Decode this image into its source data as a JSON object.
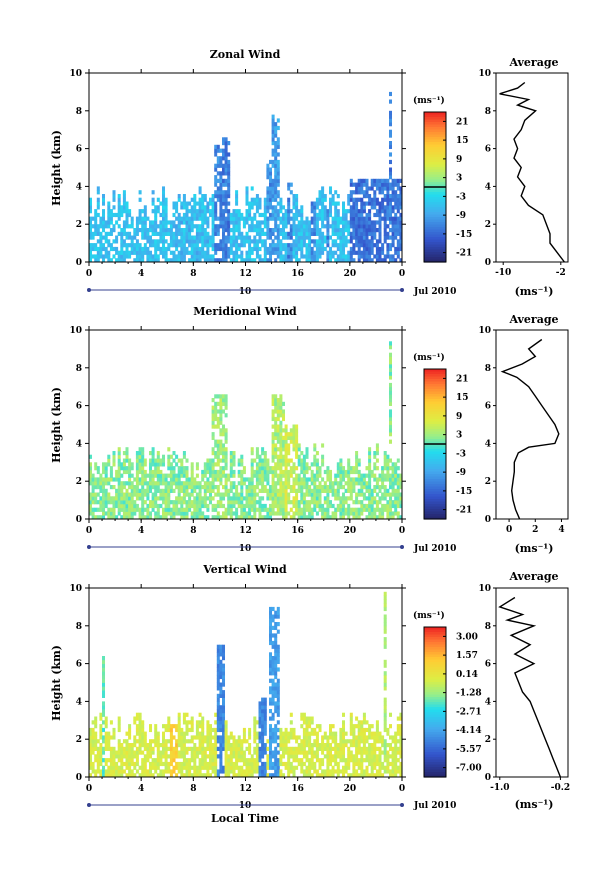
{
  "figure": {
    "x_axis_label": "Local Time",
    "date_labels": [
      "Jul 2010",
      "Jul 2010",
      "Jul 2010"
    ],
    "day_marks": [
      "10",
      "10",
      "10"
    ]
  },
  "chart_data": [
    {
      "type": "heatmap",
      "title": "Zonal Wind",
      "ylabel": "Height (km)",
      "xlabel": "",
      "xlim": [
        0,
        24
      ],
      "ylim": [
        0,
        10
      ],
      "x_ticks": [
        "0",
        "4",
        "8",
        "12",
        "16",
        "20",
        "0"
      ],
      "y_ticks": [
        "0",
        "2",
        "4",
        "6",
        "8",
        "10"
      ],
      "colorbar": {
        "unit": "(ms⁻¹)",
        "ticks": [
          "21",
          "15",
          "9",
          "3",
          "-3",
          "-9",
          "-15",
          "-21"
        ],
        "range": [
          -24,
          24
        ],
        "zero_line": 0
      },
      "field": {
        "base_value": -6,
        "noise": 3,
        "background_top_km": 4,
        "plumes": [
          {
            "x_start": 1,
            "x_end": 2.5,
            "top_km": 1.2,
            "value": -6
          },
          {
            "x_start": 6.5,
            "x_end": 9.5,
            "top_km": 3.3,
            "value": -7
          },
          {
            "x_start": 9.6,
            "x_end": 10.2,
            "top_km": 6.2,
            "value": -12
          },
          {
            "x_start": 10.2,
            "x_end": 10.8,
            "top_km": 6.5,
            "value": -13
          },
          {
            "x_start": 13.7,
            "x_end": 14.1,
            "top_km": 5.3,
            "value": -11
          },
          {
            "x_start": 14.1,
            "x_end": 14.6,
            "top_km": 7.8,
            "value": -10
          },
          {
            "x_start": 15.2,
            "x_end": 15.7,
            "top_km": 4.2,
            "value": -12
          },
          {
            "x_start": 17,
            "x_end": 19,
            "top_km": 3.3,
            "value": -12
          },
          {
            "x_start": 20,
            "x_end": 24,
            "top_km": 4.3,
            "value": -14
          },
          {
            "x_start": 23.1,
            "x_end": 23.25,
            "top_km": 9.3,
            "value": -13
          }
        ]
      },
      "profile": {
        "title": "Average",
        "xlabel": "(ms⁻¹)",
        "xlim": [
          -11,
          -1
        ],
        "x_ticks": [
          -10,
          -2
        ],
        "x_tick_labels": [
          "-10",
          "-2"
        ],
        "ylim": [
          0,
          10
        ],
        "y_ticks": [
          "0",
          "2",
          "4",
          "6",
          "8",
          "10"
        ],
        "height_km": [
          0.0,
          0.5,
          1.0,
          1.5,
          2.0,
          2.5,
          3.0,
          3.5,
          4.0,
          4.5,
          5.0,
          5.5,
          6.0,
          6.5,
          7.0,
          7.5,
          8.0,
          8.3,
          8.6,
          8.9,
          9.2,
          9.5
        ],
        "values": [
          -1.5,
          -2.5,
          -3.5,
          -3.5,
          -4.0,
          -4.5,
          -6.5,
          -7.5,
          -7.0,
          -8.0,
          -7.5,
          -8.5,
          -8.0,
          -8.5,
          -7.5,
          -7.0,
          -5.5,
          -8.0,
          -6.5,
          -10.5,
          -8.0,
          -7.0
        ]
      }
    },
    {
      "type": "heatmap",
      "title": "Meridional Wind",
      "ylabel": "Height (km)",
      "xlabel": "",
      "xlim": [
        0,
        24
      ],
      "ylim": [
        0,
        10
      ],
      "x_ticks": [
        "0",
        "4",
        "8",
        "12",
        "16",
        "20",
        "0"
      ],
      "y_ticks": [
        "0",
        "2",
        "4",
        "6",
        "8",
        "10"
      ],
      "colorbar": {
        "unit": "(ms⁻¹)",
        "ticks": [
          "21",
          "15",
          "9",
          "3",
          "-3",
          "-9",
          "-15",
          "-21"
        ],
        "range": [
          -24,
          24
        ],
        "zero_line": 0
      },
      "field": {
        "base_value": 2,
        "noise": 3,
        "background_top_km": 4,
        "plumes": [
          {
            "x_start": 9.5,
            "x_end": 10.5,
            "top_km": 6.5,
            "value": 3
          },
          {
            "x_start": 14,
            "x_end": 15,
            "top_km": 6.5,
            "value": 4
          },
          {
            "x_start": 15,
            "x_end": 16,
            "top_km": 5.0,
            "value": 6
          },
          {
            "x_start": 23,
            "x_end": 23.2,
            "top_km": 9.3,
            "value": 2
          }
        ]
      },
      "profile": {
        "title": "Average",
        "xlabel": "(ms⁻¹)",
        "xlim": [
          -1,
          4.5
        ],
        "x_ticks": [
          0,
          2,
          4
        ],
        "x_tick_labels": [
          "0",
          "2",
          "4"
        ],
        "ylim": [
          0,
          10
        ],
        "y_ticks": [
          "0",
          "2",
          "4",
          "6",
          "8",
          "10"
        ],
        "height_km": [
          0.0,
          0.5,
          1.0,
          1.5,
          2.0,
          2.5,
          3.0,
          3.5,
          3.8,
          4.0,
          4.5,
          5.0,
          5.5,
          6.0,
          6.5,
          7.0,
          7.5,
          7.8,
          8.2,
          8.6,
          9.0,
          9.5
        ],
        "values": [
          0.8,
          0.5,
          0.3,
          0.2,
          0.3,
          0.4,
          0.4,
          0.7,
          1.5,
          3.5,
          3.8,
          3.5,
          3.0,
          2.5,
          2.0,
          1.5,
          0.6,
          -0.5,
          1.0,
          2.0,
          1.5,
          2.5
        ]
      }
    },
    {
      "type": "heatmap",
      "title": "Vertical Wind",
      "ylabel": "Height (km)",
      "xlabel": "Local Time",
      "xlim": [
        0,
        24
      ],
      "ylim": [
        0,
        10
      ],
      "x_ticks": [
        "0",
        "4",
        "8",
        "12",
        "16",
        "20",
        "0"
      ],
      "y_ticks": [
        "0",
        "2",
        "4",
        "6",
        "8",
        "10"
      ],
      "colorbar": {
        "unit": "(ms⁻¹)",
        "ticks": [
          "3.00",
          "1.57",
          "0.14",
          "-1.28",
          "-2.71",
          "-4.14",
          "-5.57",
          "-7.00"
        ],
        "range": [
          -8,
          4
        ],
        "zero_line": null
      },
      "field": {
        "base_value": -0.3,
        "noise": 0.5,
        "background_top_km": 3.5,
        "plumes": [
          {
            "x_start": 1.0,
            "x_end": 1.2,
            "top_km": 6.3,
            "value": -2.0
          },
          {
            "x_start": 6.0,
            "x_end": 7.2,
            "top_km": 2.8,
            "value": 1.2
          },
          {
            "x_start": 9.8,
            "x_end": 10.4,
            "top_km": 7.0,
            "value": -5.0
          },
          {
            "x_start": 13.0,
            "x_end": 13.5,
            "top_km": 4.2,
            "value": -5.0
          },
          {
            "x_start": 13.9,
            "x_end": 14.6,
            "top_km": 9.0,
            "value": -4.5
          },
          {
            "x_start": 22.6,
            "x_end": 22.8,
            "top_km": 9.8,
            "value": -1.0
          }
        ]
      },
      "profile": {
        "title": "Average",
        "xlabel": "(ms⁻¹)",
        "xlim": [
          -1.05,
          -0.1
        ],
        "x_ticks": [
          -1.0,
          -0.2
        ],
        "x_tick_labels": [
          "-1.0",
          "-0.2"
        ],
        "ylim": [
          0,
          10
        ],
        "y_ticks": [
          "0",
          "2",
          "4",
          "6",
          "8",
          "10"
        ],
        "height_km": [
          0.0,
          0.5,
          1.0,
          1.5,
          2.0,
          2.5,
          3.0,
          3.5,
          4.0,
          4.5,
          5.0,
          5.5,
          6.0,
          6.5,
          7.0,
          7.5,
          8.0,
          8.3,
          8.6,
          9.0,
          9.5
        ],
        "values": [
          -0.2,
          -0.25,
          -0.3,
          -0.35,
          -0.4,
          -0.45,
          -0.5,
          -0.55,
          -0.6,
          -0.7,
          -0.75,
          -0.8,
          -0.55,
          -0.8,
          -0.6,
          -0.85,
          -0.55,
          -0.9,
          -0.7,
          -1.0,
          -0.8
        ]
      }
    }
  ]
}
